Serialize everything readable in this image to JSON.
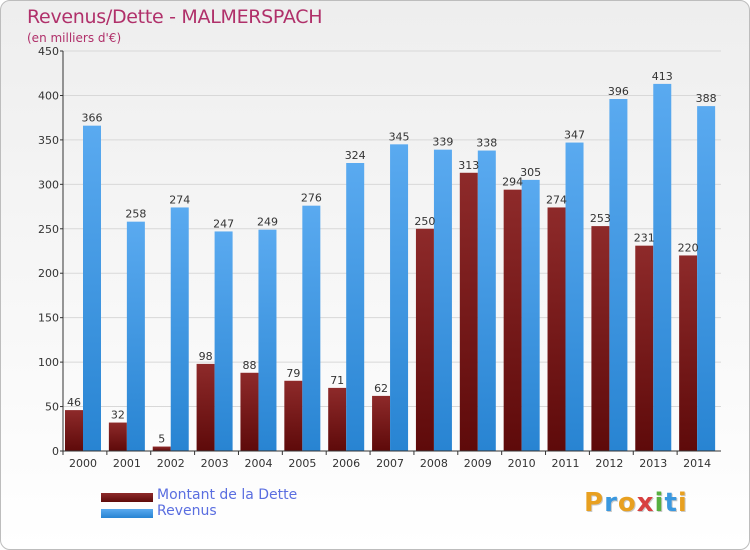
{
  "header": {
    "title": "Revenus/Dette - MALMERSPACH",
    "subtitle": "(en milliers d'€)"
  },
  "colors": {
    "debt": "#7a1c1c",
    "revenue": "#3a98df",
    "title": "#b0306a",
    "grid": "#d8d8d8",
    "axis": "#333333"
  },
  "chart_data": {
    "type": "bar",
    "title": "Revenus/Dette - MALMERSPACH",
    "subtitle": "(en milliers d'€)",
    "xlabel": "",
    "ylabel": "",
    "ylim": [
      0,
      450
    ],
    "yticks": [
      0,
      50,
      100,
      150,
      200,
      250,
      300,
      350,
      400,
      450
    ],
    "grid": true,
    "legend_position": "bottom-left",
    "categories": [
      "2000",
      "2001",
      "2002",
      "2003",
      "2004",
      "2005",
      "2006",
      "2007",
      "2008",
      "2009",
      "2010",
      "2011",
      "2012",
      "2013",
      "2014"
    ],
    "series": [
      {
        "name": "Montant de la Dette",
        "values": [
          46,
          32,
          5,
          98,
          88,
          79,
          71,
          62,
          250,
          313,
          294,
          274,
          253,
          231,
          220
        ]
      },
      {
        "name": "Revenus",
        "values": [
          366,
          258,
          274,
          247,
          249,
          276,
          324,
          345,
          339,
          338,
          305,
          347,
          396,
          413,
          388
        ]
      }
    ]
  },
  "legend": {
    "items": [
      {
        "label": "Montant de la Dette"
      },
      {
        "label": "Revenus"
      }
    ]
  },
  "logo": {
    "letters": [
      "P",
      "r",
      "o",
      "x",
      "i",
      "t",
      "i"
    ],
    "colors": [
      "#e8a020",
      "#3a98df",
      "#e8a020",
      "#d84040",
      "#58b040",
      "#3a98df",
      "#e8a020"
    ]
  }
}
